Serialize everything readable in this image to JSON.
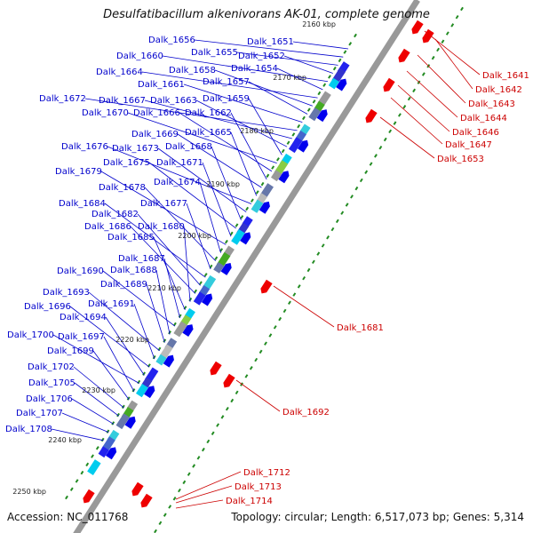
{
  "title": "Desulfatibacillum alkenivorans AK-01, complete genome",
  "accession": "Accession: NC_011768",
  "topology": "Topology: circular; Length: 6,517,073 bp; Genes: 5,314",
  "colors": {
    "backbone": "#999999",
    "forward_gene": "#0000ee",
    "reverse_gene": "#ee0000",
    "forward_label": "#0000cc",
    "reverse_label": "#cc0000",
    "dots": "#228b22"
  },
  "kbp_ticks": [
    "2160 kbp",
    "2170 kbp",
    "2180 kbp",
    "2190 kbp",
    "2200 kbp",
    "2210 kbp",
    "2220 kbp",
    "2230 kbp",
    "2240 kbp",
    "2250 kbp"
  ],
  "forward_labels": [
    "Dalk_1651",
    "Dalk_1656",
    "Dalk_1655",
    "Dalk_1652",
    "Dalk_1660",
    "Dalk_1654",
    "Dalk_1664",
    "Dalk_1658",
    "Dalk_1657",
    "Dalk_1661",
    "Dalk_1672",
    "Dalk_1667",
    "Dalk_1663",
    "Dalk_1659",
    "Dalk_1670",
    "Dalk_1666",
    "Dalk_1662",
    "Dalk_1669",
    "Dalk_1665",
    "Dalk_1676",
    "Dalk_1673",
    "Dalk_1668",
    "Dalk_1675",
    "Dalk_1671",
    "Dalk_1679",
    "Dalk_1674",
    "Dalk_1678",
    "Dalk_1677",
    "Dalk_1684",
    "Dalk_1682",
    "Dalk_1686",
    "Dalk_1680",
    "Dalk_1685",
    "Dalk_1687",
    "Dalk_1690",
    "Dalk_1688",
    "Dalk_1689",
    "Dalk_1693",
    "Dalk_1691",
    "Dalk_1696",
    "Dalk_1694",
    "Dalk_1700",
    "Dalk_1697",
    "Dalk_1699",
    "Dalk_1702",
    "Dalk_1705",
    "Dalk_1706",
    "Dalk_1707",
    "Dalk_1708"
  ],
  "reverse_labels": [
    "Dalk_1641",
    "Dalk_1642",
    "Dalk_1643",
    "Dalk_1644",
    "Dalk_1646",
    "Dalk_1647",
    "Dalk_1653",
    "Dalk_1681",
    "Dalk_1692",
    "Dalk_1712",
    "Dalk_1713",
    "Dalk_1714"
  ]
}
